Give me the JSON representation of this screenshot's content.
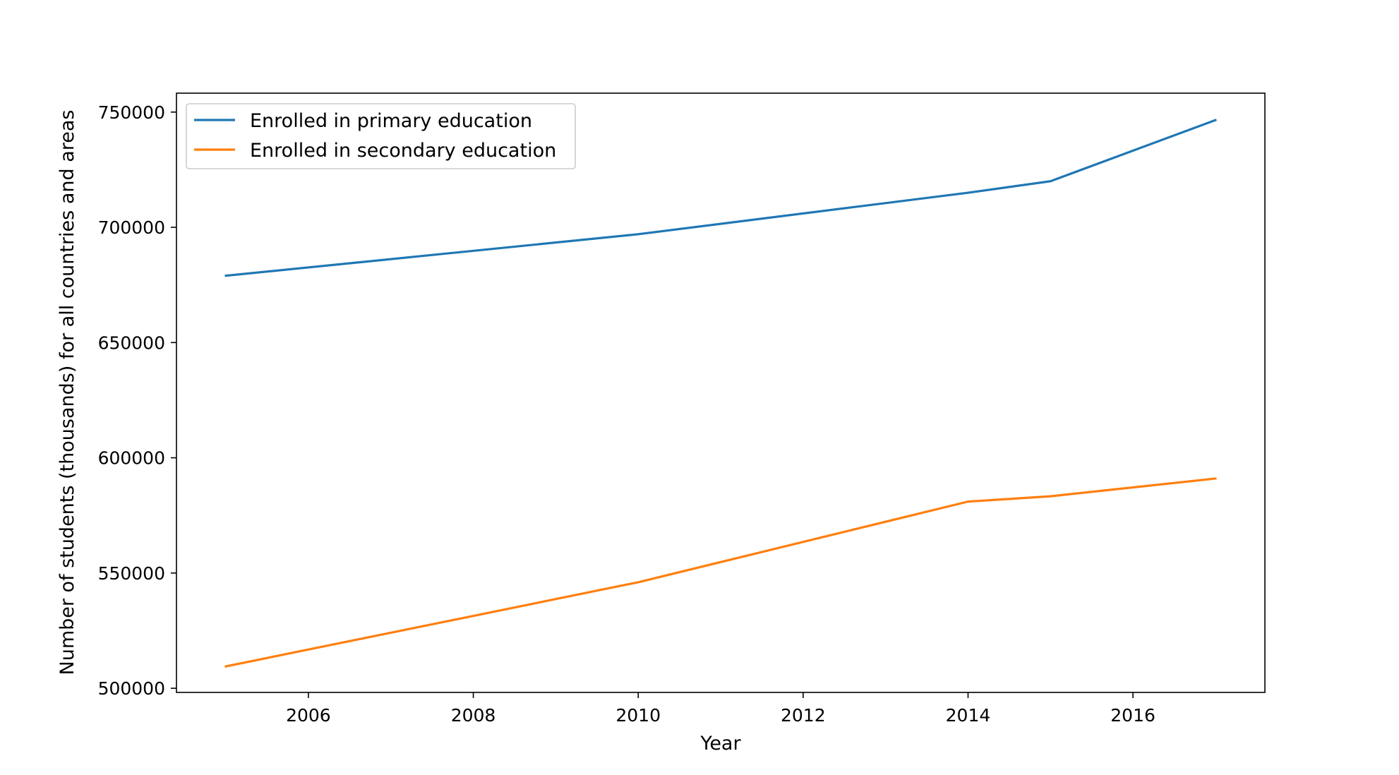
{
  "chart_data": {
    "type": "line",
    "title": "",
    "xlabel": "Year",
    "ylabel": "Number of students (thousands) for all countries and areas",
    "x": [
      2005,
      2010,
      2014,
      2015,
      2017
    ],
    "series": [
      {
        "name": "Enrolled in primary education",
        "color": "#1f77b4",
        "values": [
          679000,
          697000,
          715000,
          720000,
          746500
        ]
      },
      {
        "name": "Enrolled in secondary education",
        "color": "#ff7f0e",
        "values": [
          509500,
          546000,
          581000,
          583300,
          591000
        ]
      }
    ],
    "xlim": [
      2004.4,
      2017.6
    ],
    "ylim": [
      498200,
      758200
    ],
    "xticks": [
      2006,
      2008,
      2010,
      2012,
      2014,
      2016
    ],
    "xtick_labels": [
      "2006",
      "2008",
      "2010",
      "2012",
      "2014",
      "2016"
    ],
    "yticks": [
      500000,
      550000,
      600000,
      650000,
      700000,
      750000
    ],
    "ytick_labels": [
      "500000",
      "550000",
      "600000",
      "650000",
      "700000",
      "750000"
    ],
    "grid": false,
    "legend_position": "top-left"
  }
}
